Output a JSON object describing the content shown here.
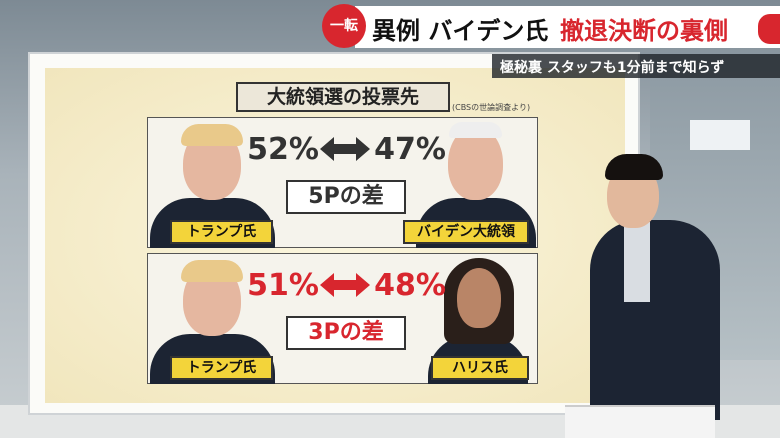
{
  "headline": {
    "badge": "一転",
    "lead": "異例 バイデン氏",
    "emphasis": "撤退決断の裏側",
    "sub": "極秘裏 スタッフも1分前まで知らず"
  },
  "board": {
    "title": "大統領選の投票先",
    "source": "(CBSの世論調査より)",
    "panels": [
      {
        "left_percent": "52%",
        "right_percent": "47%",
        "difference": "5Pの差",
        "left_name": "トランプ氏",
        "right_name": "バイデン大統領"
      },
      {
        "left_percent": "51%",
        "right_percent": "48%",
        "difference": "3Pの差",
        "left_name": "トランプ氏",
        "right_name": "ハリス氏"
      }
    ]
  }
}
